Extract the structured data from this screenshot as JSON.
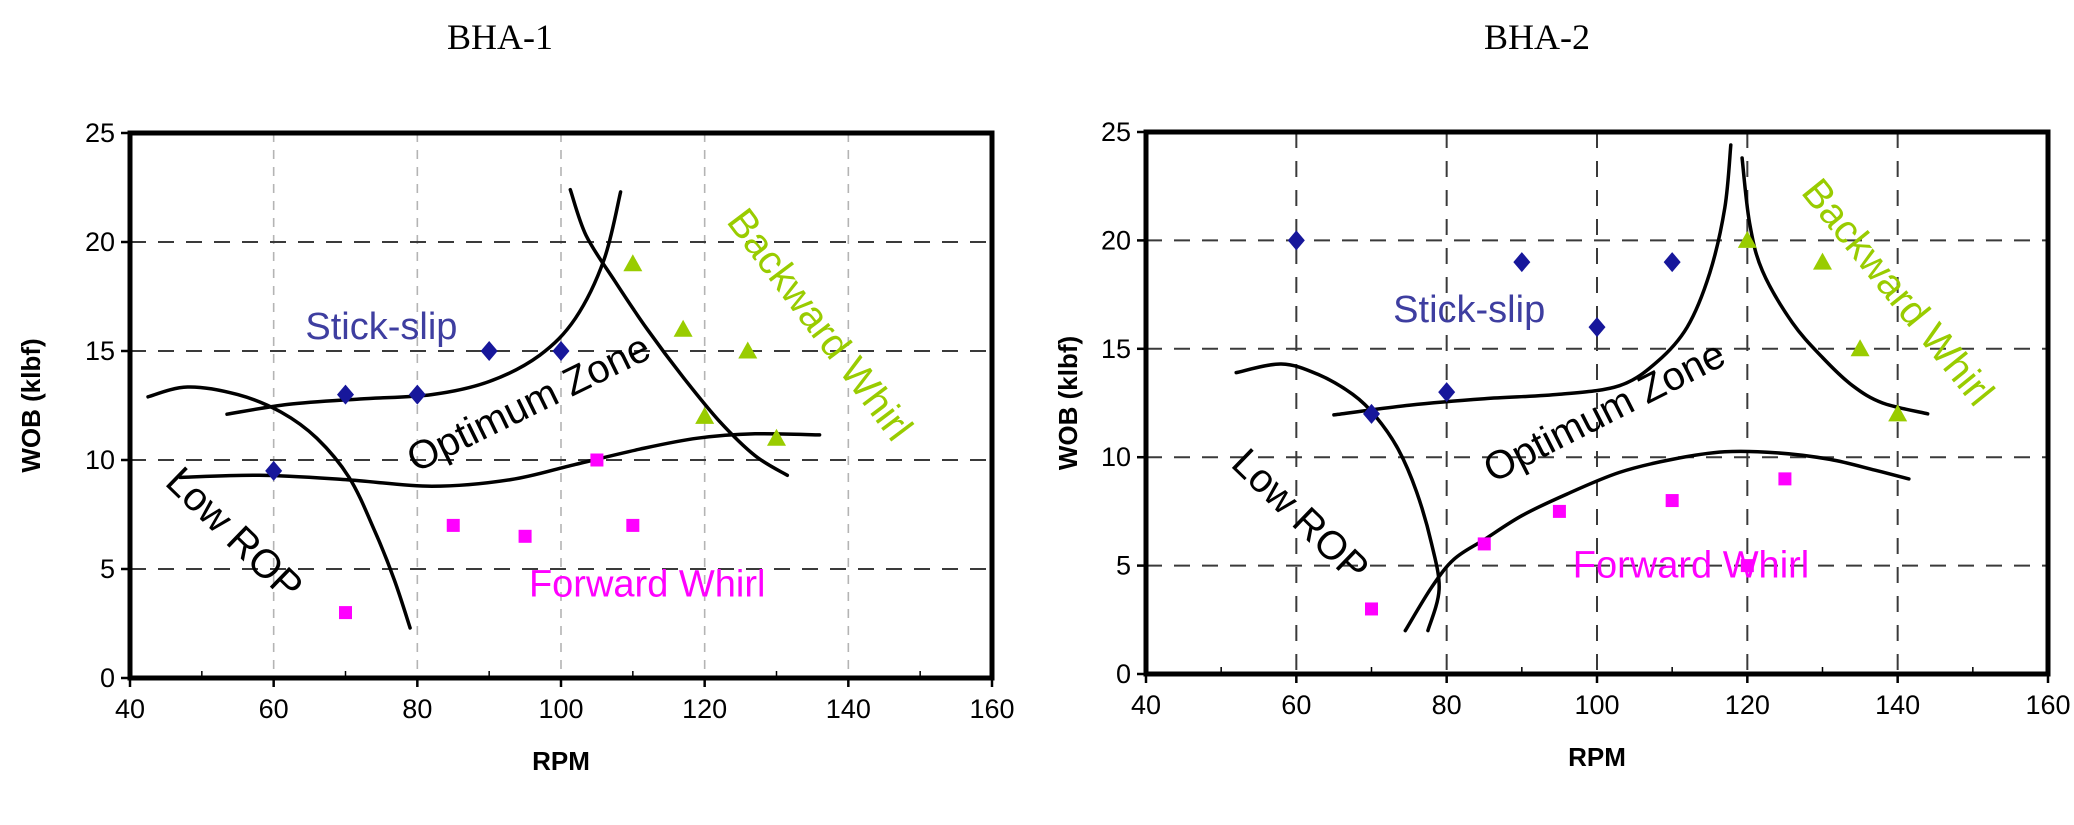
{
  "page": {
    "background": "#ffffff"
  },
  "chart_data": [
    {
      "type": "scatter",
      "title": "BHA-1",
      "xlabel": "RPM",
      "ylabel": "WOB (klbf)",
      "xlim": [
        40,
        160
      ],
      "ylim": [
        0,
        25
      ],
      "x_ticks": [
        40,
        60,
        80,
        100,
        120,
        140,
        160
      ],
      "y_ticks": [
        0,
        5,
        10,
        15,
        20,
        25
      ],
      "grid": {
        "h_color": "#3a3a3a",
        "v_color": "#b4b4b4",
        "on": true
      },
      "legend_position": "none",
      "series": [
        {
          "name": "Stick-slip",
          "marker": "diamond",
          "color": "#17179b",
          "points": [
            [
              60,
              9.5
            ],
            [
              70,
              13
            ],
            [
              80,
              13
            ],
            [
              90,
              15
            ],
            [
              100,
              15
            ]
          ]
        },
        {
          "name": "Forward Whirl",
          "marker": "square",
          "color": "#ff00ff",
          "points": [
            [
              70,
              3
            ],
            [
              85,
              7
            ],
            [
              95,
              6.5
            ],
            [
              105,
              10
            ],
            [
              110,
              7
            ]
          ]
        },
        {
          "name": "Backward Whirl",
          "marker": "triangle",
          "color": "#99cc00",
          "points": [
            [
              110,
              19
            ],
            [
              117,
              16
            ],
            [
              126,
              15
            ],
            [
              120,
              12
            ],
            [
              130,
              11
            ]
          ]
        }
      ],
      "zone_labels": [
        {
          "text": "Stick-slip",
          "x": 75,
          "y": 16.1,
          "rot": 0,
          "color": "#3e3ea0"
        },
        {
          "text": "Optimum Zone",
          "x": 95.5,
          "y": 12.6,
          "rot": -26,
          "color": "#000000"
        },
        {
          "text": "Low ROP",
          "x": 54.5,
          "y": 6.6,
          "rot": 44,
          "color": "#000000"
        },
        {
          "text": "Forward Whirl",
          "x": 112,
          "y": 4.3,
          "rot": 0,
          "color": "#ff00ff"
        },
        {
          "text": "Backward Whirl",
          "x": 136,
          "y": 16.2,
          "rot": 53,
          "color": "#99cc00"
        }
      ],
      "curves": [
        {
          "name": "low-rop-boundary",
          "points": [
            [
              42.5,
              12.9
            ],
            [
              48,
              13.35
            ],
            [
              55,
              13.0
            ],
            [
              61,
              12.2
            ],
            [
              66,
              11.0
            ],
            [
              70.5,
              9.2
            ],
            [
              74,
              6.8
            ],
            [
              76.8,
              4.5
            ],
            [
              79,
              2.3
            ]
          ]
        },
        {
          "name": "optimum-upper-boundary",
          "points": [
            [
              53.5,
              12.1
            ],
            [
              62,
              12.55
            ],
            [
              72,
              12.8
            ],
            [
              82,
              13.0
            ],
            [
              90,
              13.6
            ],
            [
              97,
              14.8
            ],
            [
              102,
              16.5
            ],
            [
              106,
              19.2
            ],
            [
              108.3,
              22.3
            ]
          ]
        },
        {
          "name": "optimum-lower-boundary",
          "points": [
            [
              47,
              9.2
            ],
            [
              58,
              9.3
            ],
            [
              70,
              9.1
            ],
            [
              82,
              8.8
            ],
            [
              93,
              9.1
            ],
            [
              102,
              9.8
            ],
            [
              111,
              10.5
            ],
            [
              119,
              11.0
            ],
            [
              127,
              11.2
            ],
            [
              136,
              11.15
            ]
          ]
        },
        {
          "name": "backward-whirl-boundary",
          "points": [
            [
              101.3,
              22.4
            ],
            [
              103.5,
              20.3
            ],
            [
              107.5,
              18.2
            ],
            [
              112,
              16.0
            ],
            [
              117,
              13.8
            ],
            [
              122,
              11.8
            ],
            [
              127,
              10.2
            ],
            [
              131.5,
              9.3
            ]
          ]
        }
      ]
    },
    {
      "type": "scatter",
      "title": "BHA-2",
      "xlabel": "RPM",
      "ylabel": "WOB (klbf)",
      "xlim": [
        40,
        160
      ],
      "ylim": [
        0,
        25
      ],
      "x_ticks": [
        40,
        60,
        80,
        100,
        120,
        140,
        160
      ],
      "y_ticks": [
        0,
        5,
        10,
        15,
        20,
        25
      ],
      "grid": {
        "h_color": "#3a3a3a",
        "v_color": "#3a3a3a",
        "on": true
      },
      "legend_position": "none",
      "series": [
        {
          "name": "Stick-slip",
          "marker": "diamond",
          "color": "#17179b",
          "points": [
            [
              60,
              20
            ],
            [
              70,
              12
            ],
            [
              80,
              13
            ],
            [
              90,
              19
            ],
            [
              100,
              16
            ],
            [
              110,
              19
            ]
          ]
        },
        {
          "name": "Forward Whirl",
          "marker": "square",
          "color": "#ff00ff",
          "points": [
            [
              70,
              3
            ],
            [
              85,
              6
            ],
            [
              95,
              7.5
            ],
            [
              110,
              8
            ],
            [
              120,
              5
            ],
            [
              125,
              9
            ]
          ]
        },
        {
          "name": "Backward Whirl",
          "marker": "triangle",
          "color": "#99cc00",
          "points": [
            [
              120,
              20
            ],
            [
              130,
              19
            ],
            [
              135,
              15
            ],
            [
              140,
              12
            ]
          ]
        }
      ],
      "zone_labels": [
        {
          "text": "Stick-slip",
          "x": 83,
          "y": 16.8,
          "rot": 0,
          "color": "#3e3ea0"
        },
        {
          "text": "Optimum Zone",
          "x": 101,
          "y": 12.1,
          "rot": -27,
          "color": "#000000"
        },
        {
          "text": "Low ROP",
          "x": 60.5,
          "y": 7.3,
          "rot": 44,
          "color": "#000000"
        },
        {
          "text": "Forward Whirl",
          "x": 112.5,
          "y": 5.0,
          "rot": 0,
          "color": "#ff00ff"
        },
        {
          "text": "Backward Whirl",
          "x": 140,
          "y": 17.6,
          "rot": 51,
          "color": "#99cc00"
        }
      ],
      "curves": [
        {
          "name": "low-rop-boundary",
          "points": [
            [
              52,
              13.9
            ],
            [
              58,
              14.3
            ],
            [
              63,
              13.8
            ],
            [
              67.5,
              12.9
            ],
            [
              70.5,
              11.9
            ],
            [
              73.5,
              10.4
            ],
            [
              76,
              8.4
            ],
            [
              78,
              6.0
            ],
            [
              79,
              3.9
            ],
            [
              77.5,
              2.0
            ]
          ]
        },
        {
          "name": "optimum-upper-boundary",
          "points": [
            [
              65,
              11.95
            ],
            [
              75,
              12.4
            ],
            [
              85,
              12.7
            ],
            [
              95,
              12.9
            ],
            [
              103,
              13.3
            ],
            [
              108,
              14.4
            ],
            [
              112,
              16.0
            ],
            [
              115,
              18.5
            ],
            [
              117,
              21.5
            ],
            [
              117.8,
              24.4
            ]
          ]
        },
        {
          "name": "optimum-lower-boundary",
          "points": [
            [
              74.5,
              2.0
            ],
            [
              78,
              4.0
            ],
            [
              81,
              5.3
            ],
            [
              85,
              6.2
            ],
            [
              90,
              7.3
            ],
            [
              96,
              8.3
            ],
            [
              103,
              9.3
            ],
            [
              110,
              9.9
            ],
            [
              117,
              10.25
            ],
            [
              124,
              10.2
            ],
            [
              131,
              9.9
            ],
            [
              137,
              9.4
            ],
            [
              141.5,
              9.0
            ]
          ]
        },
        {
          "name": "backward-whirl-boundary",
          "points": [
            [
              119.3,
              23.8
            ],
            [
              120.3,
              20.8
            ],
            [
              122,
              18.6
            ],
            [
              126,
              16.2
            ],
            [
              130,
              14.6
            ],
            [
              134,
              13.3
            ],
            [
              138,
              12.5
            ],
            [
              144,
              12.0
            ]
          ]
        }
      ]
    }
  ]
}
